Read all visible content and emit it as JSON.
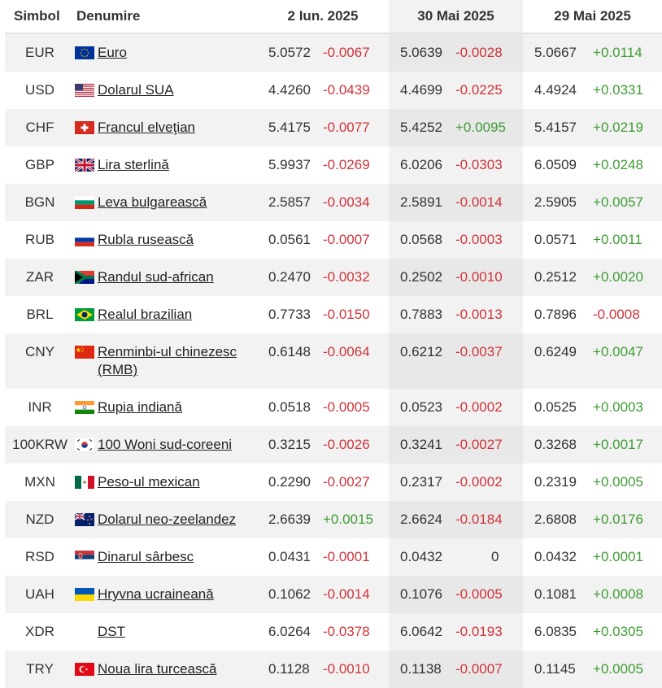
{
  "header": {
    "symbol": "Simbol",
    "name": "Denumire",
    "date1": "2 Iun. 2025",
    "date2": "30 Mai 2025",
    "date3": "29 Mai 2025"
  },
  "rows": [
    {
      "symbol": "EUR",
      "name": "Euro",
      "flag": "eu-flag-icon",
      "v1": "5.0572",
      "c1": "-0.0067",
      "v2": "5.0639",
      "c2": "-0.0028",
      "v3": "5.0667",
      "c3": "+0.0114"
    },
    {
      "symbol": "USD",
      "name": "Dolarul SUA",
      "flag": "us-flag-icon",
      "v1": "4.4260",
      "c1": "-0.0439",
      "v2": "4.4699",
      "c2": "-0.0225",
      "v3": "4.4924",
      "c3": "+0.0331"
    },
    {
      "symbol": "CHF",
      "name": "Francul elveţian",
      "flag": "ch-flag-icon",
      "v1": "5.4175",
      "c1": "-0.0077",
      "v2": "5.4252",
      "c2": "+0.0095",
      "v3": "5.4157",
      "c3": "+0.0219"
    },
    {
      "symbol": "GBP",
      "name": "Lira sterlină",
      "flag": "gb-flag-icon",
      "v1": "5.9937",
      "c1": "-0.0269",
      "v2": "6.0206",
      "c2": "-0.0303",
      "v3": "6.0509",
      "c3": "+0.0248"
    },
    {
      "symbol": "BGN",
      "name": "Leva bulgarească",
      "flag": "bg-flag-icon",
      "v1": "2.5857",
      "c1": "-0.0034",
      "v2": "2.5891",
      "c2": "-0.0014",
      "v3": "2.5905",
      "c3": "+0.0057"
    },
    {
      "symbol": "RUB",
      "name": "Rubla rusească",
      "flag": "ru-flag-icon",
      "v1": "0.0561",
      "c1": "-0.0007",
      "v2": "0.0568",
      "c2": "-0.0003",
      "v3": "0.0571",
      "c3": "+0.0011"
    },
    {
      "symbol": "ZAR",
      "name": "Randul sud-african",
      "flag": "za-flag-icon",
      "v1": "0.2470",
      "c1": "-0.0032",
      "v2": "0.2502",
      "c2": "-0.0010",
      "v3": "0.2512",
      "c3": "+0.0020"
    },
    {
      "symbol": "BRL",
      "name": "Realul brazilian",
      "flag": "br-flag-icon",
      "v1": "0.7733",
      "c1": "-0.0150",
      "v2": "0.7883",
      "c2": "-0.0013",
      "v3": "0.7896",
      "c3": "-0.0008"
    },
    {
      "symbol": "CNY",
      "name": "Renminbi-ul chinezesc (RMB)",
      "flag": "cn-flag-icon",
      "v1": "0.6148",
      "c1": "-0.0064",
      "v2": "0.6212",
      "c2": "-0.0037",
      "v3": "0.6249",
      "c3": "+0.0047"
    },
    {
      "symbol": "INR",
      "name": "Rupia indiană",
      "flag": "in-flag-icon",
      "v1": "0.0518",
      "c1": "-0.0005",
      "v2": "0.0523",
      "c2": "-0.0002",
      "v3": "0.0525",
      "c3": "+0.0003"
    },
    {
      "symbol": "100KRW",
      "name": "100 Woni sud-coreeni",
      "flag": "kr-flag-icon",
      "v1": "0.3215",
      "c1": "-0.0026",
      "v2": "0.3241",
      "c2": "-0.0027",
      "v3": "0.3268",
      "c3": "+0.0017"
    },
    {
      "symbol": "MXN",
      "name": "Peso-ul mexican",
      "flag": "mx-flag-icon",
      "v1": "0.2290",
      "c1": "-0.0027",
      "v2": "0.2317",
      "c2": "-0.0002",
      "v3": "0.2319",
      "c3": "+0.0005"
    },
    {
      "symbol": "NZD",
      "name": "Dolarul neo-zeelandez",
      "flag": "nz-flag-icon",
      "v1": "2.6639",
      "c1": "+0.0015",
      "v2": "2.6624",
      "c2": "-0.0184",
      "v3": "2.6808",
      "c3": "+0.0176"
    },
    {
      "symbol": "RSD",
      "name": "Dinarul sârbesc",
      "flag": "rs-flag-icon",
      "v1": "0.0431",
      "c1": "-0.0001",
      "v2": "0.0432",
      "c2": "0",
      "v3": "0.0432",
      "c3": "+0.0001"
    },
    {
      "symbol": "UAH",
      "name": "Hryvna ucraineană",
      "flag": "ua-flag-icon",
      "v1": "0.1062",
      "c1": "-0.0014",
      "v2": "0.1076",
      "c2": "-0.0005",
      "v3": "0.1081",
      "c3": "+0.0008"
    },
    {
      "symbol": "XDR",
      "name": "DST",
      "flag": "",
      "v1": "6.0264",
      "c1": "-0.0378",
      "v2": "6.0642",
      "c2": "-0.0193",
      "v3": "6.0835",
      "c3": "+0.0305"
    },
    {
      "symbol": "TRY",
      "name": "Noua lira turcească",
      "flag": "tr-flag-icon",
      "v1": "0.1128",
      "c1": "-0.0010",
      "v2": "0.1138",
      "c2": "-0.0007",
      "v3": "0.1145",
      "c3": "+0.0005"
    }
  ],
  "colors": {
    "negative": "#d0333a",
    "positive": "#3f9c35",
    "row_shade": "#f2f2f2",
    "column_shade": "#f2f2f2"
  }
}
